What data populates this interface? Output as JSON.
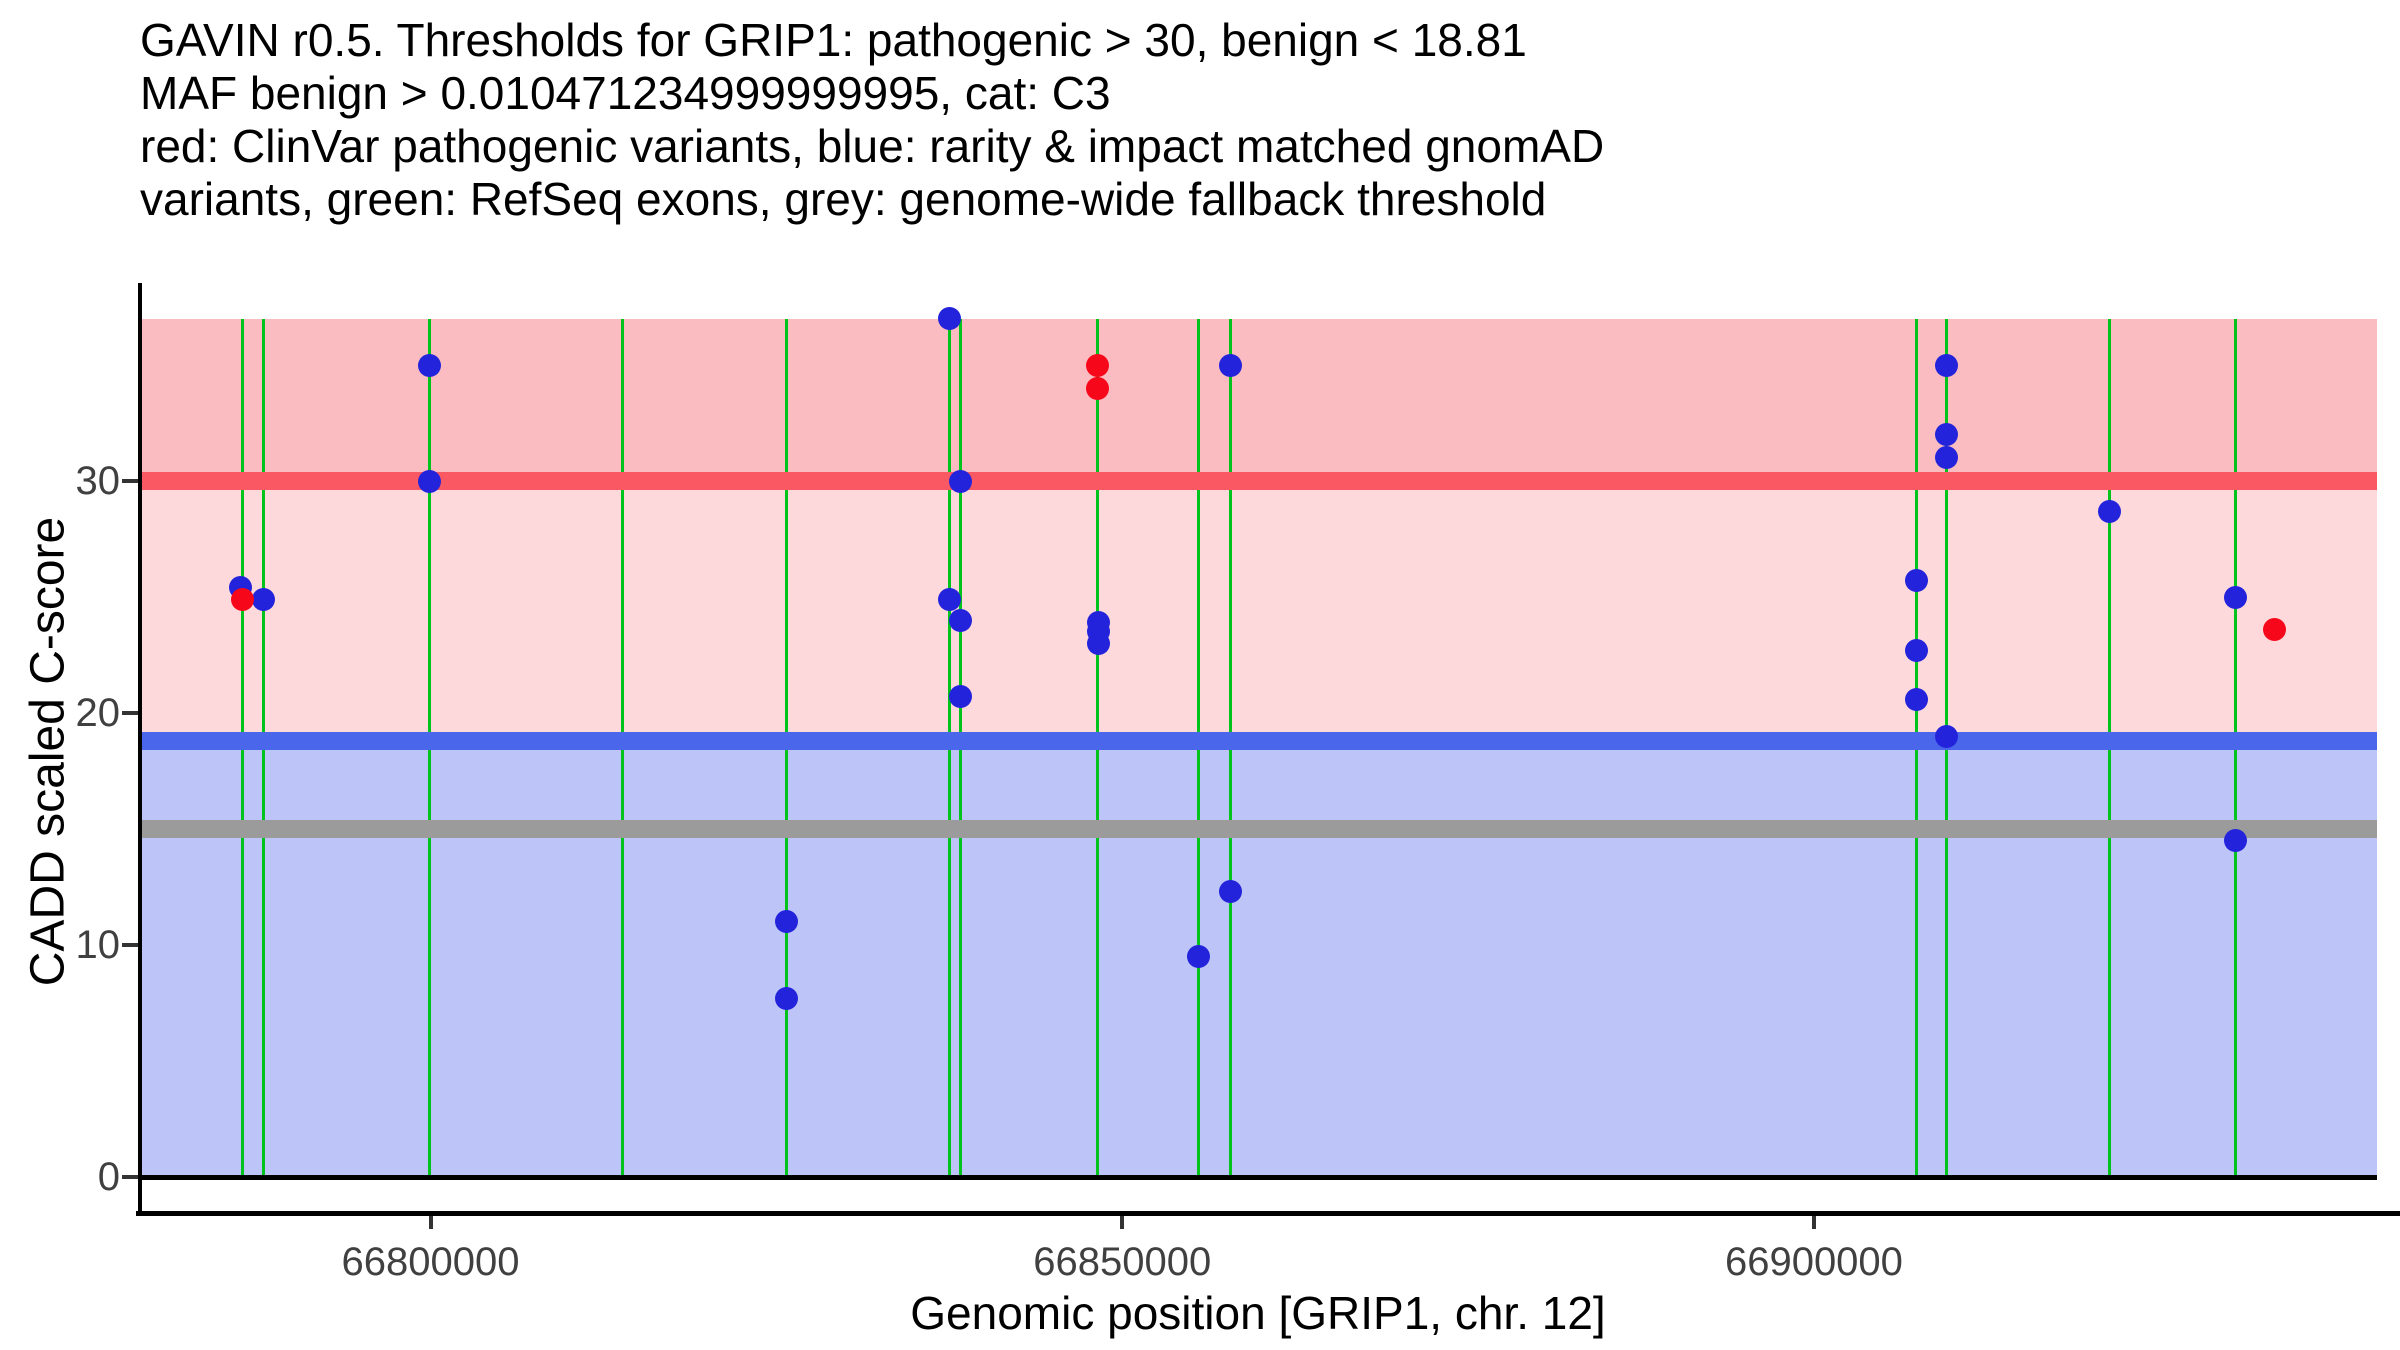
{
  "title": {
    "lines": [
      "GAVIN r0.5. Thresholds for GRIP1: pathogenic > 30, benign < 18.81",
      "MAF benign > 0.010471234999999995, cat: C3",
      "red: ClinVar pathogenic variants, blue: rarity & impact matched gnomAD",
      "variants, green: RefSeq exons, grey: genome-wide fallback threshold"
    ]
  },
  "axes": {
    "x": {
      "label": "Genomic position [GRIP1, chr. 12]",
      "tick_values": [
        66800000,
        66850000,
        66900000
      ],
      "tick_labels": [
        "66800000",
        "66850000",
        "66900000"
      ]
    },
    "y": {
      "label": "CADD scaled C-score",
      "tick_values": [
        0,
        10,
        20,
        30
      ],
      "tick_labels": [
        "0",
        "10",
        "20",
        "30"
      ]
    }
  },
  "chart_data": {
    "type": "scatter",
    "title": "GAVIN r0.5. Thresholds for GRIP1: pathogenic > 30, benign < 18.81 | MAF benign > 0.010471234999999995, cat: C3",
    "xlabel": "Genomic position [GRIP1, chr. 12]",
    "ylabel": "CADD scaled C-score",
    "x_range": [
      66779000,
      66940700
    ],
    "y_range": [
      0,
      37.0
    ],
    "x_ticks": [
      66800000,
      66850000,
      66900000
    ],
    "y_ticks": [
      0,
      10,
      20,
      30
    ],
    "grid": false,
    "legend": "described in title text",
    "bands": [
      {
        "name": "pathogenic-zone",
        "from": 30,
        "to": 37.0,
        "color": "#fbbcc1"
      },
      {
        "name": "intermediate-zone",
        "from": 18.81,
        "to": 30,
        "color": "#fed9dc"
      },
      {
        "name": "benign-zone",
        "from": 0,
        "to": 18.81,
        "color": "#bdc4f8"
      }
    ],
    "threshold_lines": [
      {
        "name": "pathogenic-threshold",
        "value": 30,
        "color": "#fa5964",
        "thickness": 18
      },
      {
        "name": "benign-threshold",
        "value": 18.81,
        "color": "#4a66ea",
        "thickness": 18
      },
      {
        "name": "genome-wide-fallback-threshold",
        "value": 15,
        "color": "#9b9b9b",
        "thickness": 18
      },
      {
        "name": "zero-baseline",
        "value": 0,
        "color": "#000000",
        "thickness": 5
      }
    ],
    "exon_lines": {
      "name": "refseq-exons",
      "color": "#00c41c",
      "thickness": 3,
      "positions": [
        66786400,
        66787900,
        66799900,
        66813900,
        66825700,
        66837500,
        66838300,
        66848200,
        66855500,
        66857800,
        66907400,
        66909600,
        66921400,
        66930500
      ]
    },
    "series": [
      {
        "name": "rarity & impact matched gnomAD variants",
        "color": "#2323dc",
        "points": [
          {
            "pos": 66786300,
            "cadd": 25.4
          },
          {
            "pos": 66787900,
            "cadd": 24.9
          },
          {
            "pos": 66799900,
            "cadd": 35.0
          },
          {
            "pos": 66799900,
            "cadd": 30.0
          },
          {
            "pos": 66825700,
            "cadd": 11.0
          },
          {
            "pos": 66825700,
            "cadd": 7.7
          },
          {
            "pos": 66837500,
            "cadd": 37.0
          },
          {
            "pos": 66837500,
            "cadd": 24.9
          },
          {
            "pos": 66838300,
            "cadd": 30.0
          },
          {
            "pos": 66838300,
            "cadd": 24.0
          },
          {
            "pos": 66838300,
            "cadd": 20.7
          },
          {
            "pos": 66848300,
            "cadd": 23.9
          },
          {
            "pos": 66848300,
            "cadd": 23.5
          },
          {
            "pos": 66848300,
            "cadd": 23.0
          },
          {
            "pos": 66855500,
            "cadd": 9.5
          },
          {
            "pos": 66857800,
            "cadd": 35.0
          },
          {
            "pos": 66857800,
            "cadd": 12.3
          },
          {
            "pos": 66907400,
            "cadd": 25.7
          },
          {
            "pos": 66907400,
            "cadd": 22.7
          },
          {
            "pos": 66907400,
            "cadd": 20.6
          },
          {
            "pos": 66909600,
            "cadd": 35.0
          },
          {
            "pos": 66909600,
            "cadd": 32.0
          },
          {
            "pos": 66909600,
            "cadd": 31.0
          },
          {
            "pos": 66909600,
            "cadd": 19.0
          },
          {
            "pos": 66921400,
            "cadd": 28.7
          },
          {
            "pos": 66930500,
            "cadd": 25.0
          },
          {
            "pos": 66930500,
            "cadd": 14.5
          }
        ]
      },
      {
        "name": "ClinVar pathogenic variants",
        "color": "#f6081a",
        "points": [
          {
            "pos": 66786400,
            "cadd": 24.9
          },
          {
            "pos": 66848200,
            "cadd": 35.0
          },
          {
            "pos": 66848200,
            "cadd": 34.0
          },
          {
            "pos": 66933300,
            "cadd": 23.6
          }
        ]
      }
    ]
  }
}
